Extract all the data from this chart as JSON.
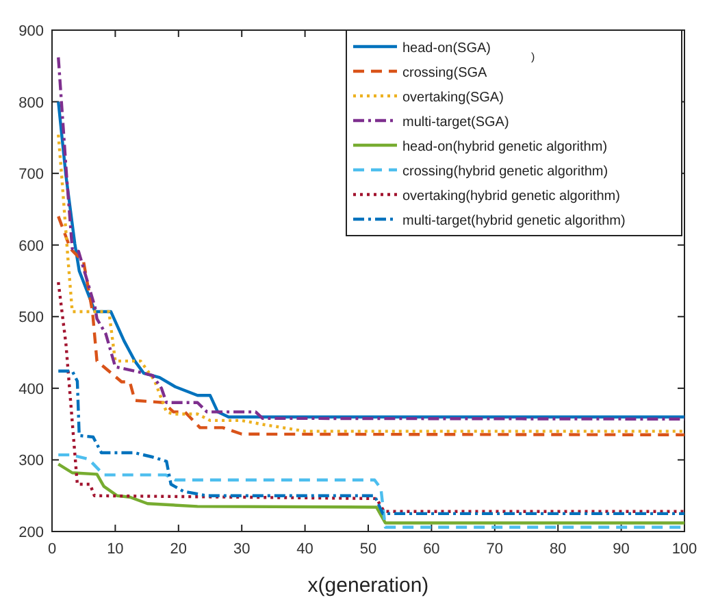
{
  "chart_data": {
    "type": "line",
    "xlabel": "x(generation)",
    "xlim": [
      0,
      100
    ],
    "xticks": [
      0,
      10,
      20,
      30,
      40,
      50,
      60,
      70,
      80,
      90,
      100
    ],
    "ylim": [
      200,
      900
    ],
    "yticks": [
      200,
      300,
      400,
      500,
      600,
      700,
      800,
      900
    ],
    "grid": false,
    "legend": "top right",
    "marker": "none",
    "annotations": [
      ")"
    ],
    "series": [
      {
        "name": "head-on(SGA)",
        "color": "#0072bd",
        "line_style": "solid",
        "x": [
          1,
          2.2,
          3.6,
          4.3,
          6.8,
          9.3,
          11.4,
          13.1,
          14.5,
          17,
          19.5,
          23,
          25,
          26.2,
          27.9,
          40,
          100
        ],
        "values": [
          800,
          697,
          602,
          564,
          507,
          507,
          466,
          438,
          421,
          415,
          402,
          390,
          390,
          367,
          360,
          360,
          360
        ]
      },
      {
        "name": "crossing(SGA",
        "color": "#d95319",
        "line_style": "dashed",
        "x": [
          1,
          2.9,
          5,
          6.4,
          7.1,
          11,
          12.3,
          13.1,
          17.6,
          19.2,
          21,
          23.4,
          27,
          30,
          100
        ],
        "values": [
          640,
          595,
          576,
          507,
          438,
          409,
          409,
          383,
          380,
          367,
          367,
          345,
          345,
          336,
          335
        ]
      },
      {
        "name": "overtaking(SGA)",
        "color": "#edb120",
        "line_style": "dotted",
        "x": [
          1,
          1.5,
          2.5,
          3.2,
          9,
          10,
          14,
          16.2,
          18.1,
          19.2,
          23,
          25,
          30,
          33,
          40,
          100
        ],
        "values": [
          754,
          700,
          583,
          507,
          507,
          438,
          438,
          411,
          367,
          364,
          364,
          355,
          355,
          350,
          340,
          340
        ]
      },
      {
        "name": "multi-target(SGA)",
        "color": "#7e2f8e",
        "line_style": "dashdot",
        "x": [
          1,
          2.3,
          3.2,
          4.2,
          6.8,
          7.1,
          8.5,
          10,
          13.1,
          15.9,
          17.3,
          18.1,
          23,
          24.5,
          32.2,
          33.3,
          100
        ],
        "values": [
          862,
          697,
          595,
          591,
          513,
          497,
          476,
          430,
          424,
          418,
          400,
          380,
          380,
          367,
          367,
          358,
          357
        ]
      },
      {
        "name": "head-on(hybrid genetic algorithm)",
        "color": "#77ac30",
        "line_style": "solid",
        "x": [
          1,
          3.2,
          7.1,
          8.2,
          10.3,
          12.3,
          15.1,
          23,
          51.3,
          52.7,
          100
        ],
        "values": [
          294,
          282,
          280,
          263,
          250,
          248,
          239,
          235,
          234,
          212,
          212
        ]
      },
      {
        "name": "crossing(hybrid genetic algorithm)",
        "color": "#4dbeee",
        "line_style": "dashed",
        "x": [
          1,
          3,
          5.8,
          8.2,
          18,
          19.5,
          51,
          52,
          52.7,
          100
        ],
        "values": [
          307,
          307,
          301,
          279,
          279,
          272,
          272,
          260,
          206,
          206
        ]
      },
      {
        "name": "overtaking(hybrid genetic algorithm)",
        "color": "#a2142f",
        "line_style": "dotted",
        "x": [
          1,
          2.2,
          4,
          6,
          6.7,
          51.3,
          52.5,
          100
        ],
        "values": [
          548,
          462,
          266,
          266,
          250,
          246,
          228,
          228
        ]
      },
      {
        "name": "multi-target(hybrid genetic algorithm)",
        "color": "#0072bd",
        "line_style": "dashdot",
        "x": [
          1,
          3.2,
          4,
          4.3,
          6.5,
          7.8,
          13,
          15.9,
          18.1,
          18.8,
          20.8,
          24.5,
          51,
          52.3,
          100
        ],
        "values": [
          424,
          424,
          410,
          334,
          332,
          310,
          310,
          304,
          298,
          266,
          256,
          250,
          250,
          225,
          225
        ]
      }
    ]
  }
}
